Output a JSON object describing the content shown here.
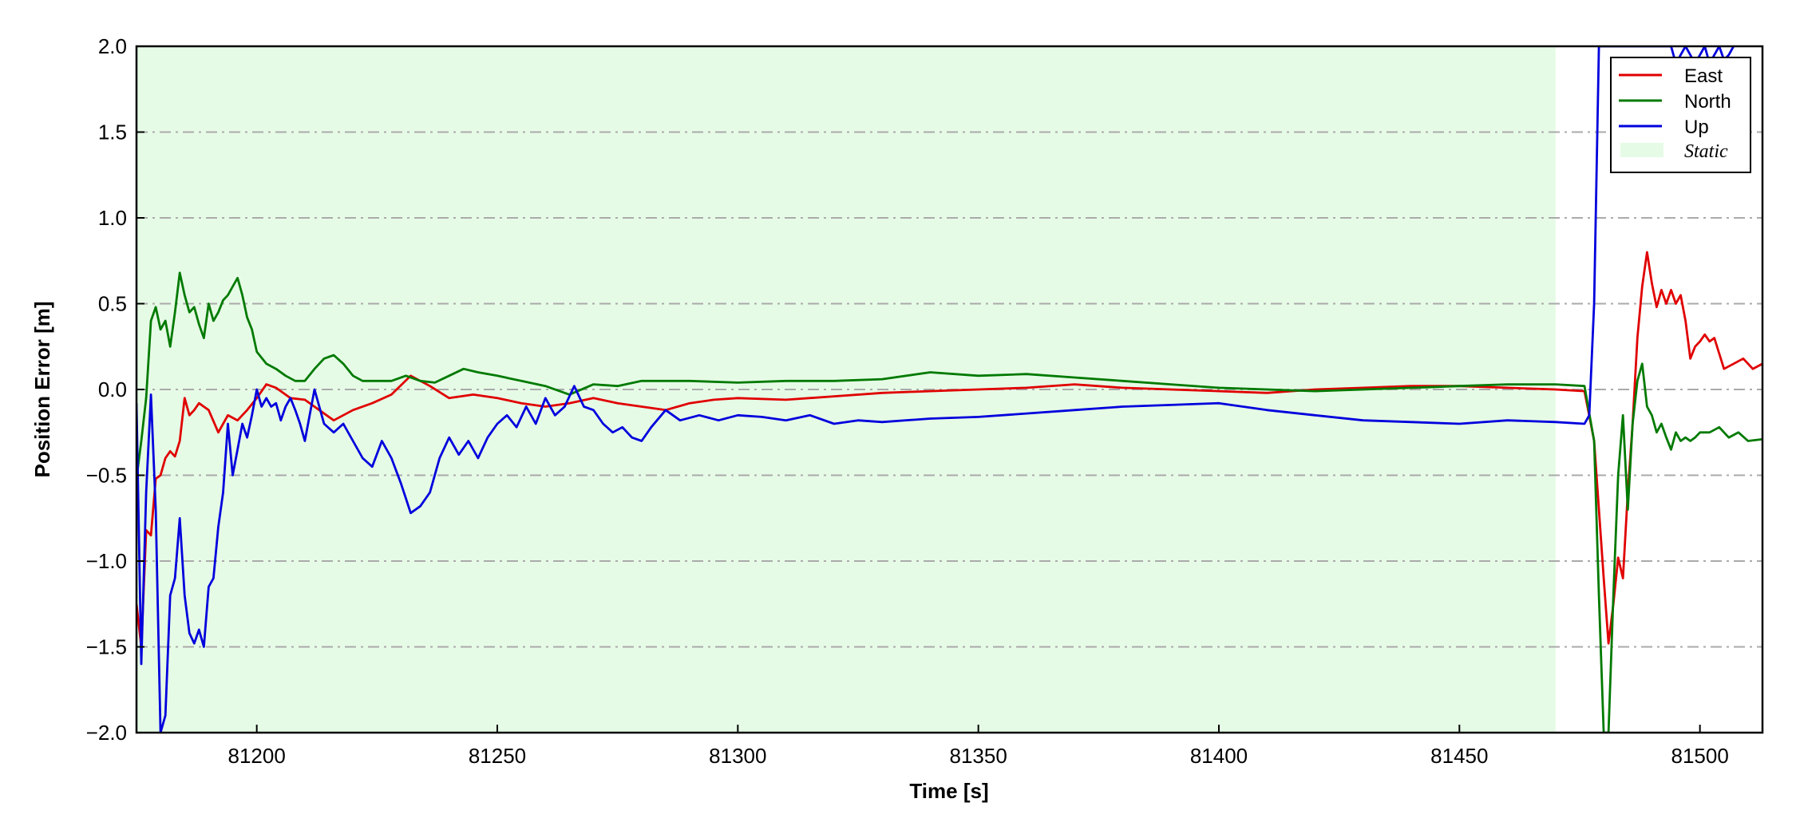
{
  "chart_data": {
    "type": "line",
    "title": "",
    "xlabel": "Time [s]",
    "ylabel": "Position Error [m]",
    "xlim": [
      81175,
      81513
    ],
    "ylim": [
      -2.0,
      2.0
    ],
    "xticks": [
      81200,
      81250,
      81300,
      81350,
      81400,
      81450,
      81500
    ],
    "xtick_labels": [
      "81200",
      "81250",
      "81300",
      "81350",
      "81400",
      "81450",
      "81500"
    ],
    "yticks": [
      -2.0,
      -1.5,
      -1.0,
      -0.5,
      0.0,
      0.5,
      1.0,
      1.5,
      2.0
    ],
    "ytick_labels": [
      "−2.0",
      "−1.5",
      "−1.0",
      "−0.5",
      "0.0",
      "0.5",
      "1.0",
      "1.5",
      "2.0"
    ],
    "grid": "horizontal dash-dot",
    "legend_position": "top-right",
    "static_region": {
      "name": "Static",
      "x_start": 81175,
      "x_end": 81470,
      "color": "#e6fbe6"
    },
    "colors": {
      "East": "#e00000",
      "North": "#007a00",
      "Up": "#0000dd",
      "grid": "#aaaaaa"
    },
    "series": [
      {
        "name": "East",
        "color": "#e00000",
        "x": [
          81175,
          81176,
          81177,
          81178,
          81179,
          81180,
          81181,
          81182,
          81183,
          81184,
          81185,
          81186,
          81187,
          81188,
          81190,
          81192,
          81194,
          81196,
          81198,
          81200,
          81202,
          81204,
          81207,
          81210,
          81213,
          81216,
          81220,
          81224,
          81228,
          81232,
          81236,
          81240,
          81245,
          81250,
          81255,
          81260,
          81265,
          81270,
          81275,
          81280,
          81285,
          81290,
          81295,
          81300,
          81310,
          81320,
          81330,
          81340,
          81350,
          81360,
          81370,
          81380,
          81390,
          81400,
          81410,
          81420,
          81430,
          81440,
          81450,
          81460,
          81470,
          81476,
          81478,
          81479,
          81480,
          81481,
          81482,
          81483,
          81484,
          81485,
          81486,
          81487,
          81488,
          81489,
          81490,
          81491,
          81492,
          81493,
          81494,
          81495,
          81496,
          81497,
          81498,
          81499,
          81500,
          81501,
          81502,
          81503,
          81505,
          81507,
          81509,
          81511,
          81513
        ],
        "values": [
          -1.25,
          -1.5,
          -0.82,
          -0.85,
          -0.52,
          -0.5,
          -0.4,
          -0.36,
          -0.39,
          -0.3,
          -0.05,
          -0.15,
          -0.12,
          -0.08,
          -0.12,
          -0.25,
          -0.15,
          -0.18,
          -0.12,
          -0.05,
          0.03,
          0.01,
          -0.05,
          -0.06,
          -0.12,
          -0.18,
          -0.12,
          -0.08,
          -0.03,
          0.08,
          0.02,
          -0.05,
          -0.03,
          -0.05,
          -0.08,
          -0.1,
          -0.08,
          -0.05,
          -0.08,
          -0.1,
          -0.12,
          -0.08,
          -0.06,
          -0.05,
          -0.06,
          -0.04,
          -0.02,
          -0.01,
          0.0,
          0.01,
          0.03,
          0.01,
          0.0,
          -0.01,
          -0.02,
          0.0,
          0.01,
          0.02,
          0.02,
          0.01,
          0.0,
          -0.01,
          -0.3,
          -0.7,
          -1.1,
          -1.48,
          -1.25,
          -0.98,
          -1.1,
          -0.6,
          -0.2,
          0.3,
          0.6,
          0.8,
          0.62,
          0.48,
          0.58,
          0.5,
          0.58,
          0.5,
          0.55,
          0.4,
          0.18,
          0.25,
          0.28,
          0.32,
          0.28,
          0.3,
          0.12,
          0.15,
          0.18,
          0.12,
          0.15
        ]
      },
      {
        "name": "North",
        "color": "#007a00",
        "x": [
          81175,
          81176,
          81177,
          81178,
          81179,
          81180,
          81181,
          81182,
          81183,
          81184,
          81185,
          81186,
          81187,
          81188,
          81189,
          81190,
          81191,
          81192,
          81193,
          81194,
          81195,
          81196,
          81197,
          81198,
          81199,
          81200,
          81202,
          81204,
          81206,
          81208,
          81210,
          81212,
          81214,
          81216,
          81218,
          81220,
          81222,
          81225,
          81228,
          81231,
          81234,
          81237,
          81240,
          81243,
          81246,
          81250,
          81255,
          81260,
          81265,
          81270,
          81275,
          81280,
          81290,
          81300,
          81310,
          81320,
          81330,
          81340,
          81350,
          81360,
          81370,
          81380,
          81390,
          81400,
          81410,
          81420,
          81430,
          81440,
          81450,
          81460,
          81470,
          81476,
          81478,
          81479,
          81480,
          81481,
          81482,
          81483,
          81484,
          81485,
          81486,
          81487,
          81488,
          81489,
          81490,
          81491,
          81492,
          81493,
          81494,
          81495,
          81496,
          81497,
          81498,
          81499,
          81500,
          81502,
          81504,
          81506,
          81508,
          81510,
          81513
        ],
        "values": [
          -0.52,
          -0.3,
          -0.05,
          0.4,
          0.48,
          0.35,
          0.4,
          0.25,
          0.45,
          0.68,
          0.55,
          0.45,
          0.48,
          0.38,
          0.3,
          0.5,
          0.4,
          0.45,
          0.52,
          0.55,
          0.6,
          0.65,
          0.55,
          0.42,
          0.35,
          0.22,
          0.15,
          0.12,
          0.08,
          0.05,
          0.05,
          0.12,
          0.18,
          0.2,
          0.15,
          0.08,
          0.05,
          0.05,
          0.05,
          0.08,
          0.05,
          0.04,
          0.08,
          0.12,
          0.1,
          0.08,
          0.05,
          0.02,
          -0.03,
          0.03,
          0.02,
          0.05,
          0.05,
          0.04,
          0.05,
          0.05,
          0.06,
          0.1,
          0.08,
          0.09,
          0.07,
          0.05,
          0.03,
          0.01,
          0.0,
          -0.01,
          0.0,
          0.01,
          0.02,
          0.03,
          0.03,
          0.02,
          -0.3,
          -1.2,
          -2.0,
          -2.0,
          -1.2,
          -0.5,
          -0.15,
          -0.7,
          -0.2,
          0.05,
          0.15,
          -0.1,
          -0.15,
          -0.25,
          -0.2,
          -0.28,
          -0.35,
          -0.25,
          -0.3,
          -0.28,
          -0.3,
          -0.28,
          -0.25,
          -0.25,
          -0.22,
          -0.28,
          -0.25,
          -0.3,
          -0.29
        ]
      },
      {
        "name": "Up",
        "color": "#0000dd",
        "x": [
          81175,
          81176,
          81177,
          81178,
          81179,
          81180,
          81181,
          81182,
          81183,
          81184,
          81185,
          81186,
          81187,
          81188,
          81189,
          81190,
          81191,
          81192,
          81193,
          81194,
          81195,
          81196,
          81197,
          81198,
          81199,
          81200,
          81201,
          81202,
          81203,
          81204,
          81205,
          81206,
          81207,
          81208,
          81209,
          81210,
          81212,
          81214,
          81216,
          81218,
          81220,
          81222,
          81224,
          81226,
          81228,
          81230,
          81232,
          81234,
          81236,
          81238,
          81240,
          81242,
          81244,
          81246,
          81248,
          81250,
          81252,
          81254,
          81256,
          81258,
          81260,
          81262,
          81264,
          81266,
          81268,
          81270,
          81272,
          81274,
          81276,
          81278,
          81280,
          81282,
          81285,
          81288,
          81292,
          81296,
          81300,
          81305,
          81310,
          81315,
          81320,
          81325,
          81330,
          81340,
          81350,
          81360,
          81370,
          81380,
          81390,
          81400,
          81410,
          81420,
          81430,
          81440,
          81450,
          81460,
          81470,
          81476,
          81477,
          81478,
          81479,
          81490,
          81492,
          81494,
          81495,
          81496,
          81497,
          81498,
          81499,
          81500,
          81501,
          81502,
          81503,
          81504,
          81505,
          81506,
          81507
        ],
        "values": [
          -0.08,
          -1.6,
          -0.6,
          -0.03,
          -0.7,
          -2.0,
          -1.9,
          -1.2,
          -1.1,
          -0.75,
          -1.2,
          -1.42,
          -1.48,
          -1.4,
          -1.5,
          -1.15,
          -1.1,
          -0.8,
          -0.6,
          -0.2,
          -0.5,
          -0.35,
          -0.2,
          -0.28,
          -0.15,
          0.0,
          -0.1,
          -0.05,
          -0.1,
          -0.08,
          -0.18,
          -0.1,
          -0.05,
          -0.12,
          -0.2,
          -0.3,
          0.0,
          -0.2,
          -0.25,
          -0.2,
          -0.3,
          -0.4,
          -0.45,
          -0.3,
          -0.4,
          -0.55,
          -0.72,
          -0.68,
          -0.6,
          -0.4,
          -0.28,
          -0.38,
          -0.3,
          -0.4,
          -0.28,
          -0.2,
          -0.15,
          -0.22,
          -0.1,
          -0.2,
          -0.05,
          -0.15,
          -0.1,
          0.02,
          -0.1,
          -0.12,
          -0.2,
          -0.25,
          -0.22,
          -0.28,
          -0.3,
          -0.22,
          -0.12,
          -0.18,
          -0.15,
          -0.18,
          -0.15,
          -0.16,
          -0.18,
          -0.15,
          -0.2,
          -0.18,
          -0.19,
          -0.17,
          -0.16,
          -0.14,
          -0.12,
          -0.1,
          -0.09,
          -0.08,
          -0.12,
          -0.15,
          -0.18,
          -0.19,
          -0.2,
          -0.18,
          -0.19,
          -0.2,
          -0.15,
          0.5,
          2.0,
          2.0,
          2.0,
          2.0,
          1.9,
          1.95,
          2.0,
          1.95,
          1.9,
          1.95,
          2.0,
          1.9,
          1.95,
          2.0,
          1.92,
          1.95,
          2.0
        ]
      }
    ]
  }
}
